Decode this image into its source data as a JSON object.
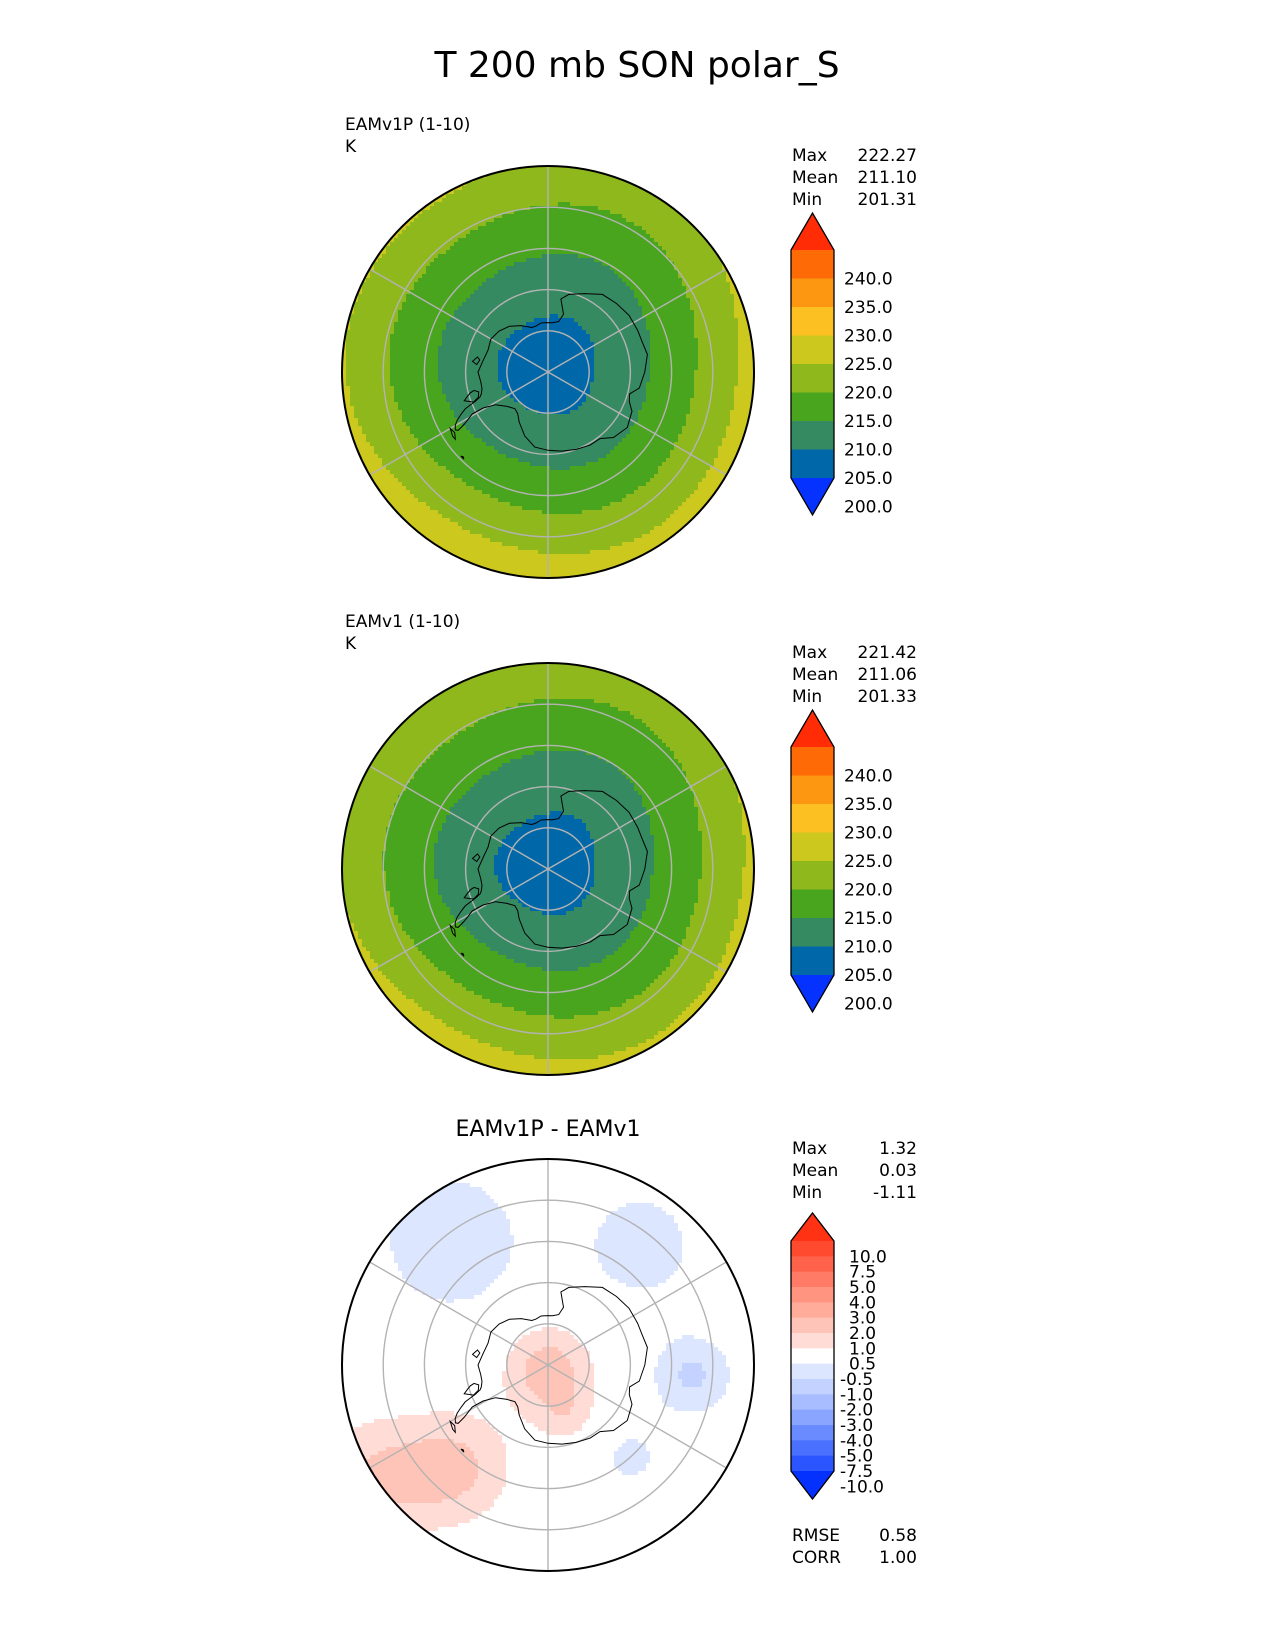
{
  "figure_title": "T 200 mb SON polar_S",
  "colors": {
    "main_levels": [
      "#0532ff",
      "#0068a8",
      "#368a62",
      "#4aa51e",
      "#8fb81c",
      "#cdc81e",
      "#fdc022",
      "#fd9611",
      "#fd6a06",
      "#ff2c05"
    ],
    "diff_levels": [
      "#0531ff",
      "#2a55ff",
      "#4a70ff",
      "#6a8bff",
      "#8aa5ff",
      "#a8bdff",
      "#c4d2ff",
      "#dde6ff",
      "#ffffff",
      "#ffdcd6",
      "#ffc4b8",
      "#ffac9b",
      "#ff9480",
      "#ff7b65",
      "#ff624a",
      "#ff4a2f",
      "#ff3214"
    ],
    "grid": "#b3b3b3",
    "coast": "#000000"
  },
  "chart_data": [
    {
      "type": "heatmap",
      "projection": "south-polar-stereographic",
      "title": "",
      "panel_title": "EAMv1P (1-10)",
      "units": "K",
      "stats": [
        {
          "label": "Max",
          "value": "222.27"
        },
        {
          "label": "Mean",
          "value": "211.10"
        },
        {
          "label": "Min",
          "value": "201.31"
        }
      ],
      "colorbar": {
        "levels": [
          200,
          205,
          210,
          215,
          220,
          225,
          230,
          235,
          240
        ],
        "tick_labels": [
          "240.0",
          "235.0",
          "230.0",
          "225.0",
          "220.0",
          "215.0",
          "210.0",
          "205.0",
          "200.0"
        ],
        "extend": "both"
      },
      "field": {
        "kind": "zonal_temperature",
        "center": 201.31,
        "rim": 222.27,
        "asymmetry": 2.0
      }
    },
    {
      "type": "heatmap",
      "projection": "south-polar-stereographic",
      "title": "",
      "panel_title": "EAMv1 (1-10)",
      "units": "K",
      "stats": [
        {
          "label": "Max",
          "value": "221.42"
        },
        {
          "label": "Mean",
          "value": "211.06"
        },
        {
          "label": "Min",
          "value": "201.33"
        }
      ],
      "colorbar": {
        "levels": [
          200,
          205,
          210,
          215,
          220,
          225,
          230,
          235,
          240
        ],
        "tick_labels": [
          "240.0",
          "235.0",
          "230.0",
          "225.0",
          "220.0",
          "215.0",
          "210.0",
          "205.0",
          "200.0"
        ],
        "extend": "both"
      },
      "field": {
        "kind": "zonal_temperature",
        "center": 201.33,
        "rim": 221.42,
        "asymmetry": 1.6
      }
    },
    {
      "type": "heatmap",
      "projection": "south-polar-stereographic",
      "title": "EAMv1P - EAMv1",
      "panel_title": "",
      "units": "",
      "stats": [
        {
          "label": "Max",
          "value": "1.32"
        },
        {
          "label": "Mean",
          "value": "0.03"
        },
        {
          "label": "Min",
          "value": "-1.11"
        }
      ],
      "metrics": [
        {
          "label": "RMSE",
          "value": "0.58"
        },
        {
          "label": "CORR",
          "value": "1.00"
        }
      ],
      "colorbar": {
        "levels": [
          -10,
          -7.5,
          -5,
          -4,
          -3,
          -2,
          -1,
          -0.5,
          0.5,
          1,
          2,
          3,
          4,
          5,
          7.5,
          10
        ],
        "tick_labels": [
          "10.0",
          "7.5",
          "5.0",
          "4.0",
          "3.0",
          "2.0",
          "1.0",
          "0.5",
          "-0.5",
          "-1.0",
          "-2.0",
          "-3.0",
          "-4.0",
          "-5.0",
          "-7.5",
          "-10.0"
        ],
        "extend": "both"
      },
      "field": {
        "kind": "difference",
        "max": 1.32,
        "min": -1.11,
        "mean": 0.03
      }
    }
  ]
}
